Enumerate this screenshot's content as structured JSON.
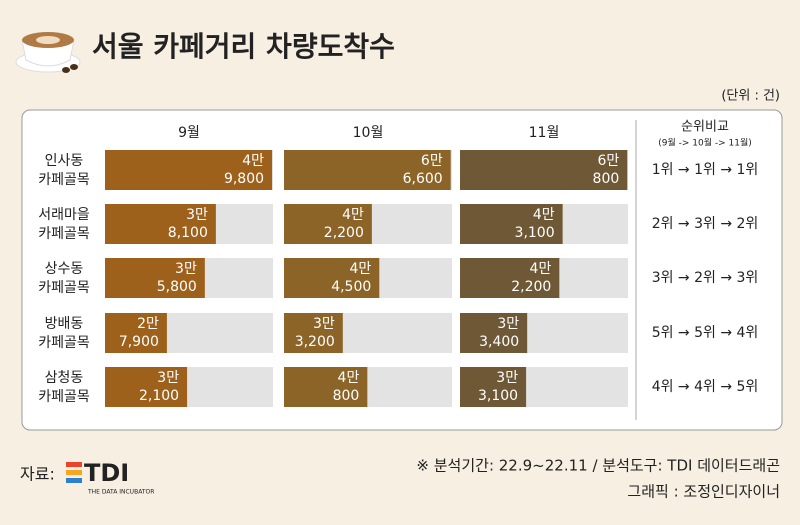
{
  "chart_data": {
    "type": "bar",
    "title": "서울 카페거리 차량도착수",
    "unit_label": "(단위 : 건)",
    "categories": [
      [
        "인사동",
        "카페골목"
      ],
      [
        "서래마을",
        "카페골목"
      ],
      [
        "상수동",
        "카페골목"
      ],
      [
        "방배동",
        "카페골목"
      ],
      [
        "삼청동",
        "카페골목"
      ]
    ],
    "series": [
      {
        "name": "9월",
        "color": "#9e611b",
        "xlim": [
          15000,
          50000
        ],
        "values": [
          49800,
          38100,
          35800,
          27900,
          32100
        ],
        "value_labels": [
          [
            "4만",
            "9,800"
          ],
          [
            "3만",
            "8,100"
          ],
          [
            "3만",
            "5,800"
          ],
          [
            "2만",
            "7,900"
          ],
          [
            "3만",
            "2,100"
          ]
        ]
      },
      {
        "name": "10월",
        "color": "#8d6427",
        "xlim": [
          15000,
          67000
        ],
        "values": [
          66600,
          42200,
          44500,
          33200,
          40800
        ],
        "value_labels": [
          [
            "6만",
            "6,600"
          ],
          [
            "4만",
            "2,200"
          ],
          [
            "4만",
            "4,500"
          ],
          [
            "3만",
            "3,200"
          ],
          [
            "4만",
            "800"
          ]
        ]
      },
      {
        "name": "11월",
        "color": "#6e5835",
        "xlim": [
          15000,
          61000
        ],
        "values": [
          60800,
          43100,
          42200,
          33400,
          33100
        ],
        "value_labels": [
          [
            "6만",
            "800"
          ],
          [
            "4만",
            "3,100"
          ],
          [
            "4만",
            "2,200"
          ],
          [
            "3만",
            "3,400"
          ],
          [
            "3만",
            "3,100"
          ]
        ]
      }
    ],
    "rank_header": "순위비교",
    "rank_subheader": "(9월 -> 10월 -> 11월)",
    "ranks": [
      "1위 → 1위 → 1위",
      "2위 → 3위 → 2위",
      "3위 → 2위 → 3위",
      "5위 → 5위 → 4위",
      "4위 → 4위 → 5위"
    ],
    "source_label": "자료:",
    "logo_text": "TDI",
    "logo_subtext": "THE DATA INCUBATOR",
    "notes": [
      "※ 분석기간:  22.9~22.11  / 분석도구: TDI 데이터드래곤",
      "그래픽 : 조정인디자이너"
    ]
  }
}
